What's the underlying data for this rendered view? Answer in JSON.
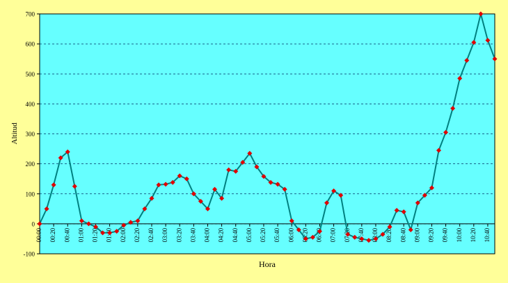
{
  "chart_data": {
    "type": "line",
    "title": "",
    "xlabel": "Hora",
    "ylabel": "Altitud",
    "ylim": [
      -100,
      700
    ],
    "yticks": [
      "-100",
      "0",
      "100",
      "200",
      "300",
      "400",
      "500",
      "600",
      "700"
    ],
    "grid": true,
    "legend": "none",
    "x_tick_labels": [
      "00:00",
      "00:20",
      "00:40",
      "01:00",
      "01:20",
      "01:40",
      "02:00",
      "02:20",
      "02:40",
      "03:00",
      "03:20",
      "03:40",
      "04:00",
      "04:20",
      "04:40",
      "05:00",
      "05:20",
      "05:40",
      "06:00",
      "06:20",
      "06:40",
      "07:00",
      "07:20",
      "07:40",
      "08:00",
      "08:20",
      "08:40",
      "09:00",
      "09:20",
      "09:40",
      "10:00",
      "10:20",
      "10:40"
    ],
    "series": [
      {
        "values": [
          0,
          50,
          130,
          220,
          240,
          125,
          10,
          0,
          -10,
          -30,
          -30,
          -25,
          -5,
          5,
          10,
          50,
          85,
          130,
          132,
          138,
          160,
          150,
          100,
          75,
          50,
          115,
          85,
          180,
          175,
          205,
          235,
          190,
          158,
          138,
          132,
          115,
          10,
          -20,
          -50,
          -45,
          -25,
          70,
          110,
          95,
          -35,
          -45,
          -50,
          -55,
          -50,
          -35,
          -10,
          45,
          40,
          -20,
          70,
          95,
          120,
          245,
          305,
          385,
          485,
          545,
          605,
          700,
          612,
          550
        ]
      }
    ],
    "colors": {
      "plot_bg": "#66ffff",
      "page_bg": "#ffff99",
      "line": "#008080",
      "marker": "#e00000",
      "grid": "#003366"
    }
  }
}
